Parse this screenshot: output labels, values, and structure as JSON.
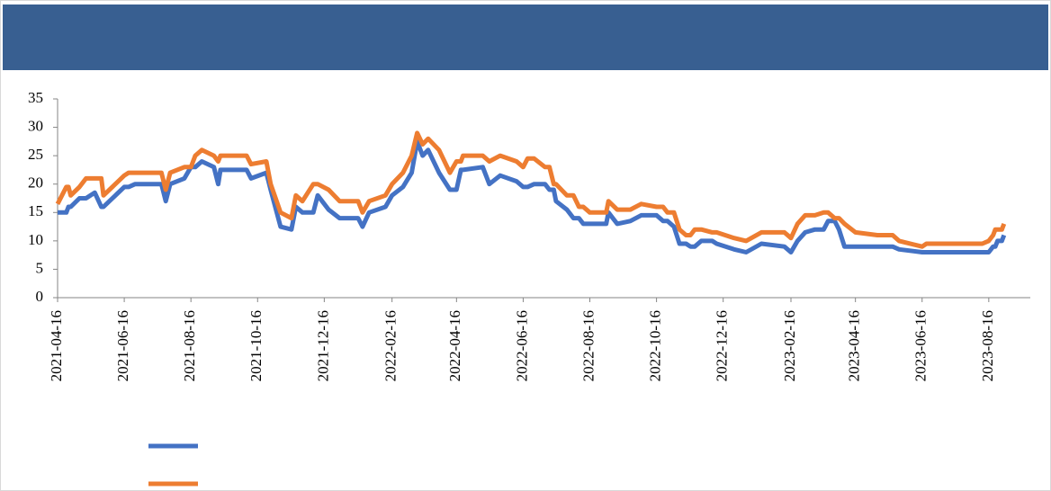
{
  "chart_data": {
    "type": "line",
    "header_color": "#385f91",
    "x": [
      "2021-04-16",
      "2021-04-24",
      "2021-04-26",
      "2021-04-28",
      "2021-05-06",
      "2021-05-12",
      "2021-05-20",
      "2021-05-26",
      "2021-05-28",
      "2021-06-16",
      "2021-06-20",
      "2021-06-26",
      "2021-07-20",
      "2021-07-24",
      "2021-07-28",
      "2021-08-10",
      "2021-08-16",
      "2021-08-20",
      "2021-08-26",
      "2021-09-06",
      "2021-09-10",
      "2021-09-12",
      "2021-10-06",
      "2021-10-10",
      "2021-10-24",
      "2021-10-28",
      "2021-11-06",
      "2021-11-16",
      "2021-11-20",
      "2021-11-26",
      "2021-12-06",
      "2021-12-10",
      "2021-12-20",
      "2021-12-30",
      "2022-01-16",
      "2022-01-20",
      "2022-01-26",
      "2022-02-10",
      "2022-02-16",
      "2022-02-26",
      "2022-03-06",
      "2022-03-11",
      "2022-03-16",
      "2022-03-21",
      "2022-03-31",
      "2022-04-10",
      "2022-04-16",
      "2022-04-20",
      "2022-04-22",
      "2022-05-10",
      "2022-05-16",
      "2022-05-26",
      "2022-06-10",
      "2022-06-16",
      "2022-06-20",
      "2022-06-26",
      "2022-07-06",
      "2022-07-10",
      "2022-07-14",
      "2022-07-16",
      "2022-07-26",
      "2022-08-01",
      "2022-08-06",
      "2022-08-10",
      "2022-08-16",
      "2022-08-31",
      "2022-09-02",
      "2022-09-10",
      "2022-09-22",
      "2022-10-02",
      "2022-10-16",
      "2022-10-22",
      "2022-10-26",
      "2022-11-01",
      "2022-11-06",
      "2022-11-12",
      "2022-11-16",
      "2022-11-20",
      "2022-11-26",
      "2022-12-06",
      "2022-12-10",
      "2022-12-26",
      "2023-01-06",
      "2023-01-20",
      "2023-02-10",
      "2023-02-16",
      "2023-02-22",
      "2023-03-01",
      "2023-03-10",
      "2023-03-18",
      "2023-03-22",
      "2023-03-28",
      "2023-04-01",
      "2023-04-06",
      "2023-04-16",
      "2023-05-06",
      "2023-05-20",
      "2023-05-26",
      "2023-06-16",
      "2023-06-20",
      "2023-08-10",
      "2023-08-16",
      "2023-08-20",
      "2023-08-22",
      "2023-08-24",
      "2023-08-28",
      "2023-08-30"
    ],
    "series": [
      {
        "color": "#4472c4",
        "values": [
          15,
          15,
          16,
          16,
          17.5,
          17.5,
          18.5,
          16,
          16,
          19.5,
          19.5,
          20,
          20,
          17,
          20,
          21,
          23,
          23,
          24,
          23,
          20,
          22.5,
          22.5,
          21,
          22,
          19,
          12.5,
          12,
          16,
          15,
          15,
          18,
          15.5,
          14,
          14,
          12.5,
          15,
          16,
          18,
          19.5,
          22,
          27.5,
          25,
          26,
          22,
          19,
          19,
          22.5,
          22.5,
          23,
          20,
          21.5,
          20.5,
          19.5,
          19.5,
          20,
          20,
          19,
          19,
          17,
          15.5,
          14,
          14,
          13,
          13,
          13,
          15,
          13,
          13.5,
          14.5,
          14.5,
          13.5,
          13.5,
          12.5,
          9.5,
          9.5,
          9,
          9,
          10,
          10,
          9.5,
          8.5,
          8,
          9.5,
          9,
          8,
          10,
          11.5,
          12,
          12,
          13.5,
          13.5,
          12,
          9,
          9,
          9,
          9,
          8.5,
          8,
          8,
          8,
          8,
          9,
          9,
          10,
          10,
          11
        ]
      },
      {
        "color": "#ed7d31",
        "values": [
          16.5,
          19.5,
          19.5,
          18,
          19.5,
          21,
          21,
          21,
          18,
          21.5,
          22,
          22,
          22,
          19,
          22,
          23,
          23,
          25,
          26,
          25,
          24,
          25,
          25,
          23.5,
          24,
          20,
          15,
          14,
          18,
          17,
          20,
          20,
          19,
          17,
          17,
          15,
          17,
          18,
          20,
          22,
          25,
          29,
          27,
          28,
          26,
          22,
          24,
          24,
          25,
          25,
          24,
          25,
          24,
          23,
          24.5,
          24.5,
          23,
          23,
          20,
          20,
          18,
          18,
          16,
          16,
          15,
          15,
          17,
          15.5,
          15.5,
          16.5,
          16,
          16,
          15,
          15,
          12,
          11,
          11,
          12,
          12,
          11.5,
          11.5,
          10.5,
          10,
          11.5,
          11.5,
          10.5,
          13,
          14.5,
          14.5,
          15,
          15,
          14,
          14,
          13,
          11.5,
          11,
          11,
          10,
          9,
          9.5,
          9.5,
          10,
          11,
          12,
          12,
          12,
          13
        ]
      }
    ],
    "xlim": [
      "2021-04-16",
      "2023-09-23"
    ],
    "xticks": [
      "2021-04-16",
      "2021-06-16",
      "2021-08-16",
      "2021-10-16",
      "2021-12-16",
      "2022-02-16",
      "2022-04-16",
      "2022-06-16",
      "2022-08-16",
      "2022-10-16",
      "2022-12-16",
      "2023-02-16",
      "2023-04-16",
      "2023-06-16",
      "2023-08-16"
    ],
    "ylim": [
      0,
      35
    ],
    "yticks": [
      0,
      5,
      10,
      15,
      20,
      25,
      30,
      35
    ],
    "grid": false
  }
}
